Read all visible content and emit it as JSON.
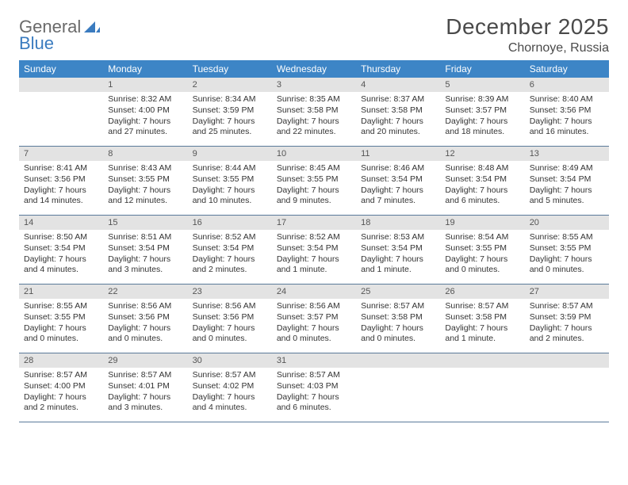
{
  "brand": {
    "name1": "General",
    "name2": "Blue"
  },
  "title": "December 2025",
  "location": "Chornoye, Russia",
  "colors": {
    "header_bg": "#3d85c6",
    "band_bg": "#e3e3e3",
    "text": "#333333",
    "rule": "#5a7a9a",
    "logo_gray": "#6a6a6a",
    "logo_blue": "#3a7bbf"
  },
  "day_names": [
    "Sunday",
    "Monday",
    "Tuesday",
    "Wednesday",
    "Thursday",
    "Friday",
    "Saturday"
  ],
  "weeks": [
    [
      {
        "n": "",
        "empty": true
      },
      {
        "n": "1",
        "sunrise": "Sunrise: 8:32 AM",
        "sunset": "Sunset: 4:00 PM",
        "day": "Daylight: 7 hours and 27 minutes."
      },
      {
        "n": "2",
        "sunrise": "Sunrise: 8:34 AM",
        "sunset": "Sunset: 3:59 PM",
        "day": "Daylight: 7 hours and 25 minutes."
      },
      {
        "n": "3",
        "sunrise": "Sunrise: 8:35 AM",
        "sunset": "Sunset: 3:58 PM",
        "day": "Daylight: 7 hours and 22 minutes."
      },
      {
        "n": "4",
        "sunrise": "Sunrise: 8:37 AM",
        "sunset": "Sunset: 3:58 PM",
        "day": "Daylight: 7 hours and 20 minutes."
      },
      {
        "n": "5",
        "sunrise": "Sunrise: 8:39 AM",
        "sunset": "Sunset: 3:57 PM",
        "day": "Daylight: 7 hours and 18 minutes."
      },
      {
        "n": "6",
        "sunrise": "Sunrise: 8:40 AM",
        "sunset": "Sunset: 3:56 PM",
        "day": "Daylight: 7 hours and 16 minutes."
      }
    ],
    [
      {
        "n": "7",
        "sunrise": "Sunrise: 8:41 AM",
        "sunset": "Sunset: 3:56 PM",
        "day": "Daylight: 7 hours and 14 minutes."
      },
      {
        "n": "8",
        "sunrise": "Sunrise: 8:43 AM",
        "sunset": "Sunset: 3:55 PM",
        "day": "Daylight: 7 hours and 12 minutes."
      },
      {
        "n": "9",
        "sunrise": "Sunrise: 8:44 AM",
        "sunset": "Sunset: 3:55 PM",
        "day": "Daylight: 7 hours and 10 minutes."
      },
      {
        "n": "10",
        "sunrise": "Sunrise: 8:45 AM",
        "sunset": "Sunset: 3:55 PM",
        "day": "Daylight: 7 hours and 9 minutes."
      },
      {
        "n": "11",
        "sunrise": "Sunrise: 8:46 AM",
        "sunset": "Sunset: 3:54 PM",
        "day": "Daylight: 7 hours and 7 minutes."
      },
      {
        "n": "12",
        "sunrise": "Sunrise: 8:48 AM",
        "sunset": "Sunset: 3:54 PM",
        "day": "Daylight: 7 hours and 6 minutes."
      },
      {
        "n": "13",
        "sunrise": "Sunrise: 8:49 AM",
        "sunset": "Sunset: 3:54 PM",
        "day": "Daylight: 7 hours and 5 minutes."
      }
    ],
    [
      {
        "n": "14",
        "sunrise": "Sunrise: 8:50 AM",
        "sunset": "Sunset: 3:54 PM",
        "day": "Daylight: 7 hours and 4 minutes."
      },
      {
        "n": "15",
        "sunrise": "Sunrise: 8:51 AM",
        "sunset": "Sunset: 3:54 PM",
        "day": "Daylight: 7 hours and 3 minutes."
      },
      {
        "n": "16",
        "sunrise": "Sunrise: 8:52 AM",
        "sunset": "Sunset: 3:54 PM",
        "day": "Daylight: 7 hours and 2 minutes."
      },
      {
        "n": "17",
        "sunrise": "Sunrise: 8:52 AM",
        "sunset": "Sunset: 3:54 PM",
        "day": "Daylight: 7 hours and 1 minute."
      },
      {
        "n": "18",
        "sunrise": "Sunrise: 8:53 AM",
        "sunset": "Sunset: 3:54 PM",
        "day": "Daylight: 7 hours and 1 minute."
      },
      {
        "n": "19",
        "sunrise": "Sunrise: 8:54 AM",
        "sunset": "Sunset: 3:55 PM",
        "day": "Daylight: 7 hours and 0 minutes."
      },
      {
        "n": "20",
        "sunrise": "Sunrise: 8:55 AM",
        "sunset": "Sunset: 3:55 PM",
        "day": "Daylight: 7 hours and 0 minutes."
      }
    ],
    [
      {
        "n": "21",
        "sunrise": "Sunrise: 8:55 AM",
        "sunset": "Sunset: 3:55 PM",
        "day": "Daylight: 7 hours and 0 minutes."
      },
      {
        "n": "22",
        "sunrise": "Sunrise: 8:56 AM",
        "sunset": "Sunset: 3:56 PM",
        "day": "Daylight: 7 hours and 0 minutes."
      },
      {
        "n": "23",
        "sunrise": "Sunrise: 8:56 AM",
        "sunset": "Sunset: 3:56 PM",
        "day": "Daylight: 7 hours and 0 minutes."
      },
      {
        "n": "24",
        "sunrise": "Sunrise: 8:56 AM",
        "sunset": "Sunset: 3:57 PM",
        "day": "Daylight: 7 hours and 0 minutes."
      },
      {
        "n": "25",
        "sunrise": "Sunrise: 8:57 AM",
        "sunset": "Sunset: 3:58 PM",
        "day": "Daylight: 7 hours and 0 minutes."
      },
      {
        "n": "26",
        "sunrise": "Sunrise: 8:57 AM",
        "sunset": "Sunset: 3:58 PM",
        "day": "Daylight: 7 hours and 1 minute."
      },
      {
        "n": "27",
        "sunrise": "Sunrise: 8:57 AM",
        "sunset": "Sunset: 3:59 PM",
        "day": "Daylight: 7 hours and 2 minutes."
      }
    ],
    [
      {
        "n": "28",
        "sunrise": "Sunrise: 8:57 AM",
        "sunset": "Sunset: 4:00 PM",
        "day": "Daylight: 7 hours and 2 minutes."
      },
      {
        "n": "29",
        "sunrise": "Sunrise: 8:57 AM",
        "sunset": "Sunset: 4:01 PM",
        "day": "Daylight: 7 hours and 3 minutes."
      },
      {
        "n": "30",
        "sunrise": "Sunrise: 8:57 AM",
        "sunset": "Sunset: 4:02 PM",
        "day": "Daylight: 7 hours and 4 minutes."
      },
      {
        "n": "31",
        "sunrise": "Sunrise: 8:57 AM",
        "sunset": "Sunset: 4:03 PM",
        "day": "Daylight: 7 hours and 6 minutes."
      },
      {
        "n": "",
        "empty": true
      },
      {
        "n": "",
        "empty": true
      },
      {
        "n": "",
        "empty": true
      }
    ]
  ]
}
